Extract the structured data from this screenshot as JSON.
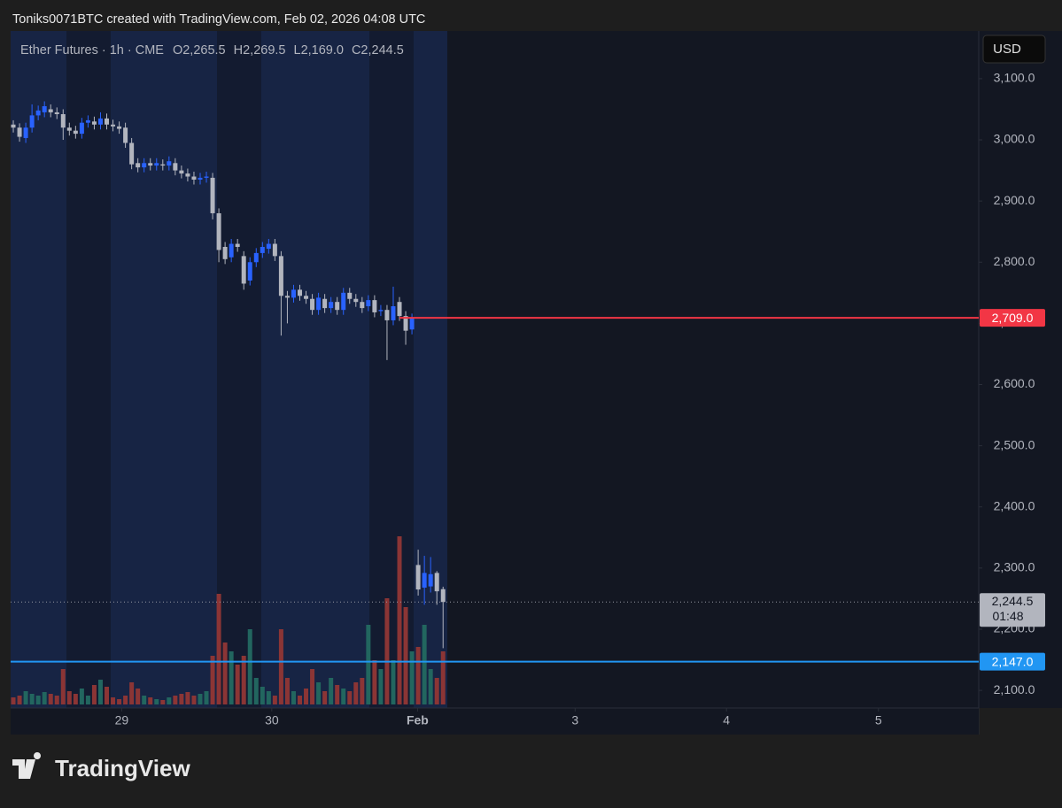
{
  "header": {
    "caption": "Toniks0071BTC created with TradingView.com, Feb 02, 2026 04:08 UTC",
    "currency": "USD",
    "brand": "TradingView"
  },
  "chart_data": {
    "type": "candlestick",
    "title": "Ether Futures · 1h · CME",
    "ohlc_legend": [
      "O2,265.5",
      "H2,269.5",
      "L2,169.0",
      "C2,244.5"
    ],
    "up_color": "#2962ff",
    "down_color": "#b2b5be",
    "volume_up_color": "#22665f",
    "volume_down_color": "#8b3535",
    "x": [
      0,
      1,
      2,
      3,
      4,
      5,
      6,
      7,
      8,
      9,
      10,
      11,
      12,
      13,
      14,
      15,
      16,
      17,
      18,
      19,
      20,
      21,
      22,
      23,
      24,
      25,
      26,
      27,
      28,
      29,
      30,
      31,
      32,
      33,
      34,
      35,
      36,
      37,
      38,
      39,
      40,
      41,
      42,
      43,
      44,
      45,
      46,
      47,
      48,
      49,
      50,
      51,
      52,
      53,
      54,
      55,
      56,
      57,
      58,
      59,
      60,
      61,
      62,
      63,
      64,
      65,
      66,
      67,
      68,
      69
    ],
    "open": [
      3025,
      3020,
      3003,
      3020,
      3040,
      3045,
      3050,
      3045,
      3042,
      3020,
      3015,
      3010,
      3028,
      3030,
      3025,
      3035,
      3025,
      3022,
      3020,
      2995,
      2962,
      2955,
      2962,
      2958,
      2960,
      2958,
      2962,
      2950,
      2945,
      2940,
      2935,
      2938,
      2938,
      2880,
      2825,
      2808,
      2830,
      2810,
      2770,
      2800,
      2815,
      2822,
      2830,
      2810,
      2745,
      2742,
      2755,
      2745,
      2740,
      2722,
      2740,
      2725,
      2735,
      2722,
      2750,
      2740,
      2735,
      2728,
      2738,
      2720,
      2722,
      2705,
      2735,
      2712,
      2690,
      2305,
      2268,
      2270,
      2292,
      2265.5
    ],
    "high": [
      3032,
      3027,
      3028,
      3058,
      3056,
      3063,
      3058,
      3053,
      3050,
      3028,
      3023,
      3036,
      3040,
      3038,
      3045,
      3043,
      3033,
      3030,
      3028,
      3003,
      2970,
      2970,
      2970,
      2970,
      2968,
      2973,
      2970,
      2958,
      2953,
      2948,
      2946,
      2948,
      2946,
      2888,
      2833,
      2838,
      2838,
      2818,
      2808,
      2823,
      2833,
      2838,
      2838,
      2818,
      2753,
      2763,
      2763,
      2753,
      2748,
      2750,
      2748,
      2743,
      2743,
      2758,
      2758,
      2748,
      2743,
      2746,
      2746,
      2730,
      2730,
      2760,
      2743,
      2720,
      2716,
      2330,
      2320,
      2318,
      2295,
      2269.5
    ],
    "low": [
      3012,
      2997,
      2995,
      3012,
      3032,
      3037,
      3037,
      3034,
      3000,
      3007,
      3002,
      3002,
      3020,
      3017,
      3017,
      3017,
      3014,
      3010,
      2987,
      2952,
      2947,
      2947,
      2950,
      2950,
      2950,
      2950,
      2942,
      2937,
      2932,
      2927,
      2927,
      2930,
      2870,
      2800,
      2797,
      2800,
      2817,
      2755,
      2762,
      2792,
      2807,
      2814,
      2802,
      2680,
      2700,
      2734,
      2737,
      2732,
      2714,
      2714,
      2717,
      2717,
      2714,
      2714,
      2732,
      2727,
      2717,
      2720,
      2710,
      2712,
      2640,
      2697,
      2704,
      2665,
      2682,
      2255,
      2240,
      2260,
      2240,
      2169
    ],
    "close": [
      3020,
      3005,
      3020,
      3040,
      3048,
      3055,
      3045,
      3042,
      3020,
      3015,
      3010,
      3028,
      3032,
      3025,
      3035,
      3025,
      3022,
      3018,
      2995,
      2960,
      2955,
      2962,
      2958,
      2962,
      2958,
      2965,
      2950,
      2945,
      2940,
      2935,
      2938,
      2940,
      2880,
      2820,
      2805,
      2830,
      2825,
      2765,
      2800,
      2815,
      2825,
      2830,
      2810,
      2745,
      2742,
      2755,
      2745,
      2740,
      2722,
      2742,
      2725,
      2735,
      2722,
      2750,
      2740,
      2735,
      2725,
      2738,
      2718,
      2722,
      2705,
      2728,
      2712,
      2688,
      2708,
      2265,
      2292,
      2290,
      2262,
      2244.5
    ],
    "volume": [
      8,
      10,
      15,
      12,
      10,
      14,
      12,
      10,
      40,
      15,
      12,
      18,
      10,
      22,
      28,
      20,
      8,
      6,
      10,
      25,
      18,
      10,
      8,
      6,
      5,
      8,
      10,
      12,
      14,
      10,
      12,
      15,
      55,
      125,
      70,
      60,
      45,
      55,
      85,
      30,
      20,
      15,
      10,
      85,
      30,
      15,
      10,
      18,
      40,
      25,
      15,
      30,
      22,
      18,
      15,
      25,
      30,
      90,
      50,
      40,
      120,
      50,
      190,
      110,
      60,
      65,
      90,
      40,
      30,
      60
    ],
    "volume_ylim": [
      0,
      761
    ],
    "xlim": [
      -0.43,
      155
    ],
    "xticks": [
      {
        "value": 17.4,
        "label": "29"
      },
      {
        "value": 41.5,
        "label": "30"
      },
      {
        "value": 64.9,
        "label": "Feb"
      },
      {
        "value": 90.2,
        "label": "3"
      },
      {
        "value": 114.5,
        "label": "4"
      },
      {
        "value": 138.9,
        "label": "5"
      }
    ],
    "ylim": [
      2077,
      3178
    ],
    "yticks": [
      {
        "value": 2100,
        "label": "2,100.0"
      },
      {
        "value": 2200,
        "label": "2,200.0"
      },
      {
        "value": 2300,
        "label": "2,300.0"
      },
      {
        "value": 2400,
        "label": "2,400.0"
      },
      {
        "value": 2500,
        "label": "2,500.0"
      },
      {
        "value": 2600,
        "label": "2,600.0"
      },
      {
        "value": 2700,
        "label": "2,700.0"
      },
      {
        "value": 2800,
        "label": "2,800.0"
      },
      {
        "value": 2900,
        "label": "2,900.0"
      },
      {
        "value": 3000,
        "label": "3,000.0"
      },
      {
        "value": 3100,
        "label": "3,100.0"
      }
    ],
    "levels": [
      {
        "value": 2709,
        "label": "2,709.0",
        "color": "#f23645",
        "from_x": 62
      },
      {
        "value": 2147,
        "label": "2,147.0",
        "color": "#2196f3"
      }
    ],
    "last_price": {
      "value": 2244.5,
      "label": "2,244.5",
      "countdown": "01:48"
    }
  }
}
